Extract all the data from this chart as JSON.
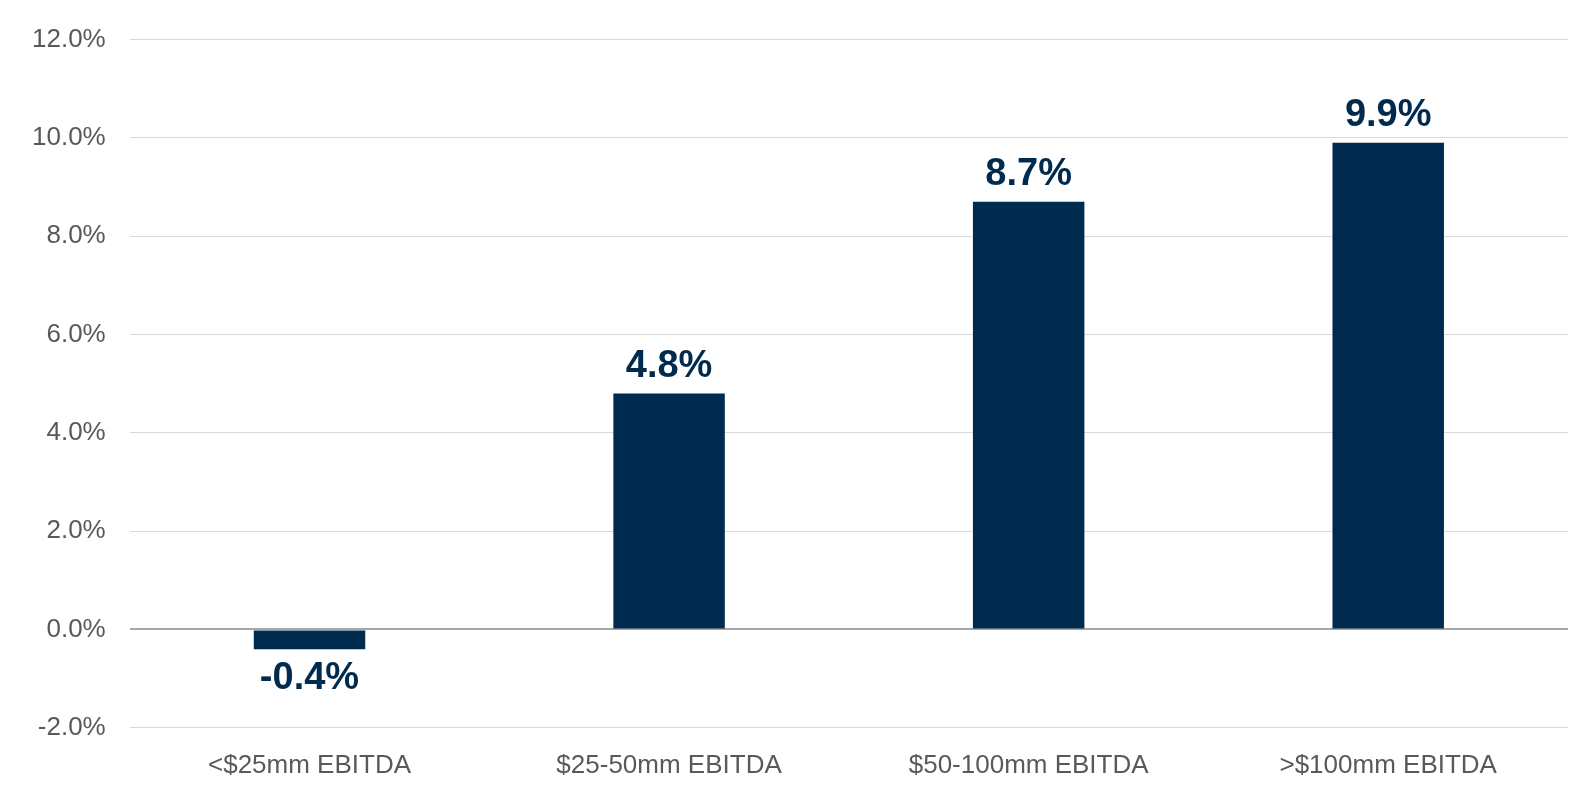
{
  "chart_data": {
    "type": "bar",
    "categories": [
      "<$25mm EBITDA",
      "$25-50mm EBITDA",
      "$50-100mm EBITDA",
      ">$100mm EBITDA"
    ],
    "values": [
      -0.4,
      4.8,
      8.7,
      9.9
    ],
    "value_labels": [
      "-0.4%",
      "4.8%",
      "8.7%",
      "9.9%"
    ],
    "color": "#002b4e",
    "ylim": [
      -2,
      12
    ],
    "yticks": [
      {
        "value": -2,
        "label": "-2.0%"
      },
      {
        "value": 0,
        "label": "0.0%"
      },
      {
        "value": 2,
        "label": "2.0%"
      },
      {
        "value": 4,
        "label": "4.0%"
      },
      {
        "value": 6,
        "label": "6.0%"
      },
      {
        "value": 8,
        "label": "8.0%"
      },
      {
        "value": 10,
        "label": "10.0%"
      },
      {
        "value": 12,
        "label": "12.0%"
      }
    ],
    "grid": "y",
    "legend": false
  }
}
